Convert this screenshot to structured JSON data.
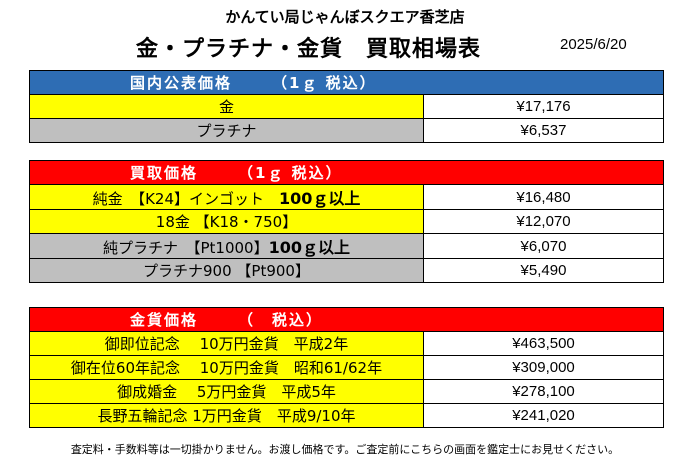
{
  "header": {
    "store": "かんてい局じゃんぼスクエア香芝店",
    "title": "金・プラチナ・金貨　買取相場表",
    "date": "2025/6/20"
  },
  "domestic": {
    "heading": "国内公表価格",
    "unit": "（1ｇ 税込）",
    "rows": [
      {
        "label": "金",
        "price": "¥17,176"
      },
      {
        "label": "プラチナ",
        "price": "¥6,537"
      }
    ]
  },
  "buyback": {
    "heading": "買取価格",
    "unit": "（1ｇ 税込）",
    "rows": [
      {
        "label": "純金　【K24】インゴット　",
        "bold": "100ｇ以上",
        "price": "¥16,480"
      },
      {
        "label": "18金 【K18・750】",
        "bold": "",
        "price": "¥12,070"
      },
      {
        "label": "純プラチナ　【Pt1000】",
        "bold": "100ｇ以上",
        "price": "¥6,070"
      },
      {
        "label": "プラチナ900 【Pt900】",
        "bold": "",
        "price": "¥5,490"
      }
    ]
  },
  "coins": {
    "heading": "金貨価格",
    "unit": "（　税込）",
    "rows": [
      {
        "label": "御即位記念　 10万円金貨　平成2年",
        "price": "¥463,500"
      },
      {
        "label": "御在位60年記念　 10万円金貨　昭和61/62年",
        "price": "¥309,000"
      },
      {
        "label": "御成婚金　 5万円金貨　平成5年",
        "price": "¥278,100"
      },
      {
        "label": "長野五輪記念 1万円金貨　平成9/10年",
        "price": "¥241,020"
      }
    ]
  },
  "footer": "査定料・手数料等は一切掛かりません。お渡し価格です。ご査定前にこちらの画面を鑑定士にお見せください。",
  "colors": {
    "blue": "#2e6db4",
    "red": "#ff0000",
    "yellow": "#ffff00",
    "gray": "#bfbfbf"
  }
}
